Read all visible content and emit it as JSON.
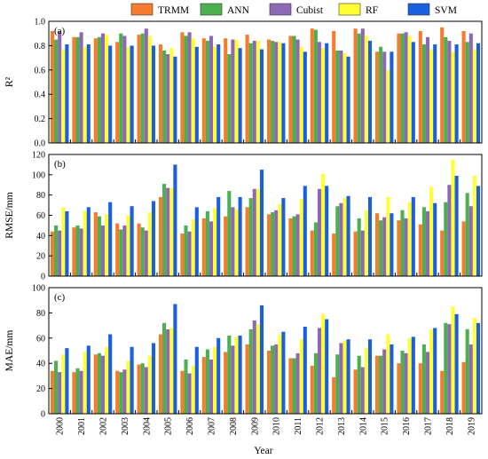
{
  "legend": {
    "items": [
      {
        "name": "TRMM",
        "color": "#F47D2D"
      },
      {
        "name": "ANN",
        "color": "#4CAF50"
      },
      {
        "name": "Cubist",
        "color": "#8E68B5"
      },
      {
        "name": "RF",
        "color": "#FFFF33"
      },
      {
        "name": "SVM",
        "color": "#1A5FE0"
      }
    ]
  },
  "xlabel": "Year",
  "chart_data": [
    {
      "type": "bar",
      "panel_label": "(a)",
      "ylabel": "R²",
      "ylim": [
        0.0,
        1.0
      ],
      "yticks": [
        "0.0",
        "0.2",
        "0.4",
        "0.6",
        "0.8",
        "1.0"
      ],
      "categories": [
        "2000",
        "2001",
        "2002",
        "2003",
        "2004",
        "2005",
        "2006",
        "2007",
        "2008",
        "2009",
        "2010",
        "2011",
        "2012",
        "2013",
        "2014",
        "2015",
        "2016",
        "2017",
        "2018",
        "2019"
      ],
      "series": [
        {
          "name": "TRMM",
          "values": [
            0.92,
            0.87,
            0.86,
            0.83,
            0.89,
            0.81,
            0.91,
            0.86,
            0.86,
            0.89,
            0.85,
            0.88,
            0.94,
            0.92,
            0.94,
            0.75,
            0.9,
            0.92,
            0.95,
            0.92
          ]
        },
        {
          "name": "ANN",
          "values": [
            0.85,
            0.87,
            0.87,
            0.9,
            0.9,
            0.76,
            0.88,
            0.84,
            0.73,
            0.82,
            0.84,
            0.88,
            0.93,
            0.76,
            0.9,
            0.79,
            0.9,
            0.81,
            0.87,
            0.83
          ]
        },
        {
          "name": "Cubist",
          "values": [
            0.92,
            0.91,
            0.9,
            0.88,
            0.94,
            0.73,
            0.91,
            0.88,
            0.85,
            0.84,
            0.83,
            0.85,
            0.83,
            0.76,
            0.94,
            0.75,
            0.91,
            0.87,
            0.84,
            0.9
          ]
        },
        {
          "name": "RF",
          "values": [
            0.77,
            0.79,
            0.89,
            0.79,
            0.88,
            0.78,
            0.86,
            0.79,
            0.85,
            0.84,
            0.83,
            0.79,
            0.78,
            0.74,
            0.88,
            0.6,
            0.88,
            0.77,
            0.75,
            0.77
          ]
        },
        {
          "name": "SVM",
          "values": [
            0.81,
            0.81,
            0.8,
            0.8,
            0.8,
            0.71,
            0.79,
            0.81,
            0.78,
            0.77,
            0.82,
            0.75,
            0.82,
            0.71,
            0.84,
            0.75,
            0.83,
            0.81,
            0.81,
            0.82
          ]
        }
      ]
    },
    {
      "type": "bar",
      "panel_label": "(b)",
      "ylabel": "RMSE/mm",
      "ylim": [
        0,
        120
      ],
      "yticks": [
        "0",
        "20",
        "40",
        "60",
        "80",
        "100",
        "120"
      ],
      "categories": [
        "2000",
        "2001",
        "2002",
        "2003",
        "2004",
        "2005",
        "2006",
        "2007",
        "2008",
        "2009",
        "2010",
        "2011",
        "2012",
        "2013",
        "2014",
        "2015",
        "2016",
        "2017",
        "2018",
        "2019"
      ],
      "series": [
        {
          "name": "TRMM",
          "values": [
            44,
            48,
            63,
            52,
            52,
            78,
            42,
            57,
            59,
            68,
            61,
            57,
            45,
            42,
            44,
            62,
            55,
            51,
            45,
            54
          ]
        },
        {
          "name": "ANN",
          "values": [
            50,
            50,
            59,
            46,
            48,
            91,
            50,
            64,
            84,
            77,
            63,
            59,
            53,
            69,
            57,
            55,
            65,
            68,
            73,
            82
          ]
        },
        {
          "name": "Cubist",
          "values": [
            45,
            47,
            50,
            50,
            45,
            87,
            44,
            54,
            68,
            86,
            65,
            61,
            86,
            72,
            45,
            58,
            57,
            64,
            90,
            69
          ]
        },
        {
          "name": "RF",
          "values": [
            68,
            64,
            61,
            60,
            63,
            87,
            56,
            67,
            66,
            86,
            71,
            76,
            101,
            77,
            65,
            78,
            73,
            88,
            115,
            99
          ]
        },
        {
          "name": "SVM",
          "values": [
            64,
            68,
            73,
            69,
            74,
            110,
            68,
            78,
            78,
            105,
            77,
            89,
            89,
            79,
            78,
            62,
            78,
            72,
            99,
            89
          ]
        }
      ]
    },
    {
      "type": "bar",
      "panel_label": "(c)",
      "ylabel": "MAE/mm",
      "ylim": [
        0,
        100
      ],
      "yticks": [
        "0",
        "20",
        "40",
        "60",
        "80",
        "100"
      ],
      "categories": [
        "2000",
        "2001",
        "2002",
        "2003",
        "2004",
        "2005",
        "2006",
        "2007",
        "2008",
        "2009",
        "2010",
        "2011",
        "2012",
        "2013",
        "2014",
        "2015",
        "2016",
        "2017",
        "2018",
        "2019"
      ],
      "series": [
        {
          "name": "TRMM",
          "values": [
            34,
            33,
            47,
            34,
            39,
            63,
            34,
            45,
            49,
            55,
            50,
            44,
            38,
            29,
            35,
            46,
            40,
            40,
            34,
            41
          ]
        },
        {
          "name": "ANN",
          "values": [
            42,
            36,
            48,
            33,
            40,
            72,
            43,
            51,
            62,
            67,
            54,
            44,
            48,
            47,
            46,
            46,
            50,
            55,
            72,
            67
          ]
        },
        {
          "name": "Cubist",
          "values": [
            33,
            34,
            46,
            35,
            37,
            67,
            32,
            43,
            54,
            74,
            55,
            48,
            68,
            56,
            37,
            51,
            48,
            49,
            71,
            55
          ]
        },
        {
          "name": "RF",
          "values": [
            47,
            49,
            53,
            42,
            46,
            68,
            38,
            53,
            61,
            71,
            63,
            59,
            79,
            58,
            52,
            63,
            60,
            67,
            85,
            76
          ]
        },
        {
          "name": "SVM",
          "values": [
            52,
            54,
            63,
            53,
            56,
            87,
            53,
            60,
            62,
            86,
            65,
            69,
            75,
            59,
            59,
            55,
            61,
            68,
            79,
            72
          ]
        }
      ]
    }
  ]
}
